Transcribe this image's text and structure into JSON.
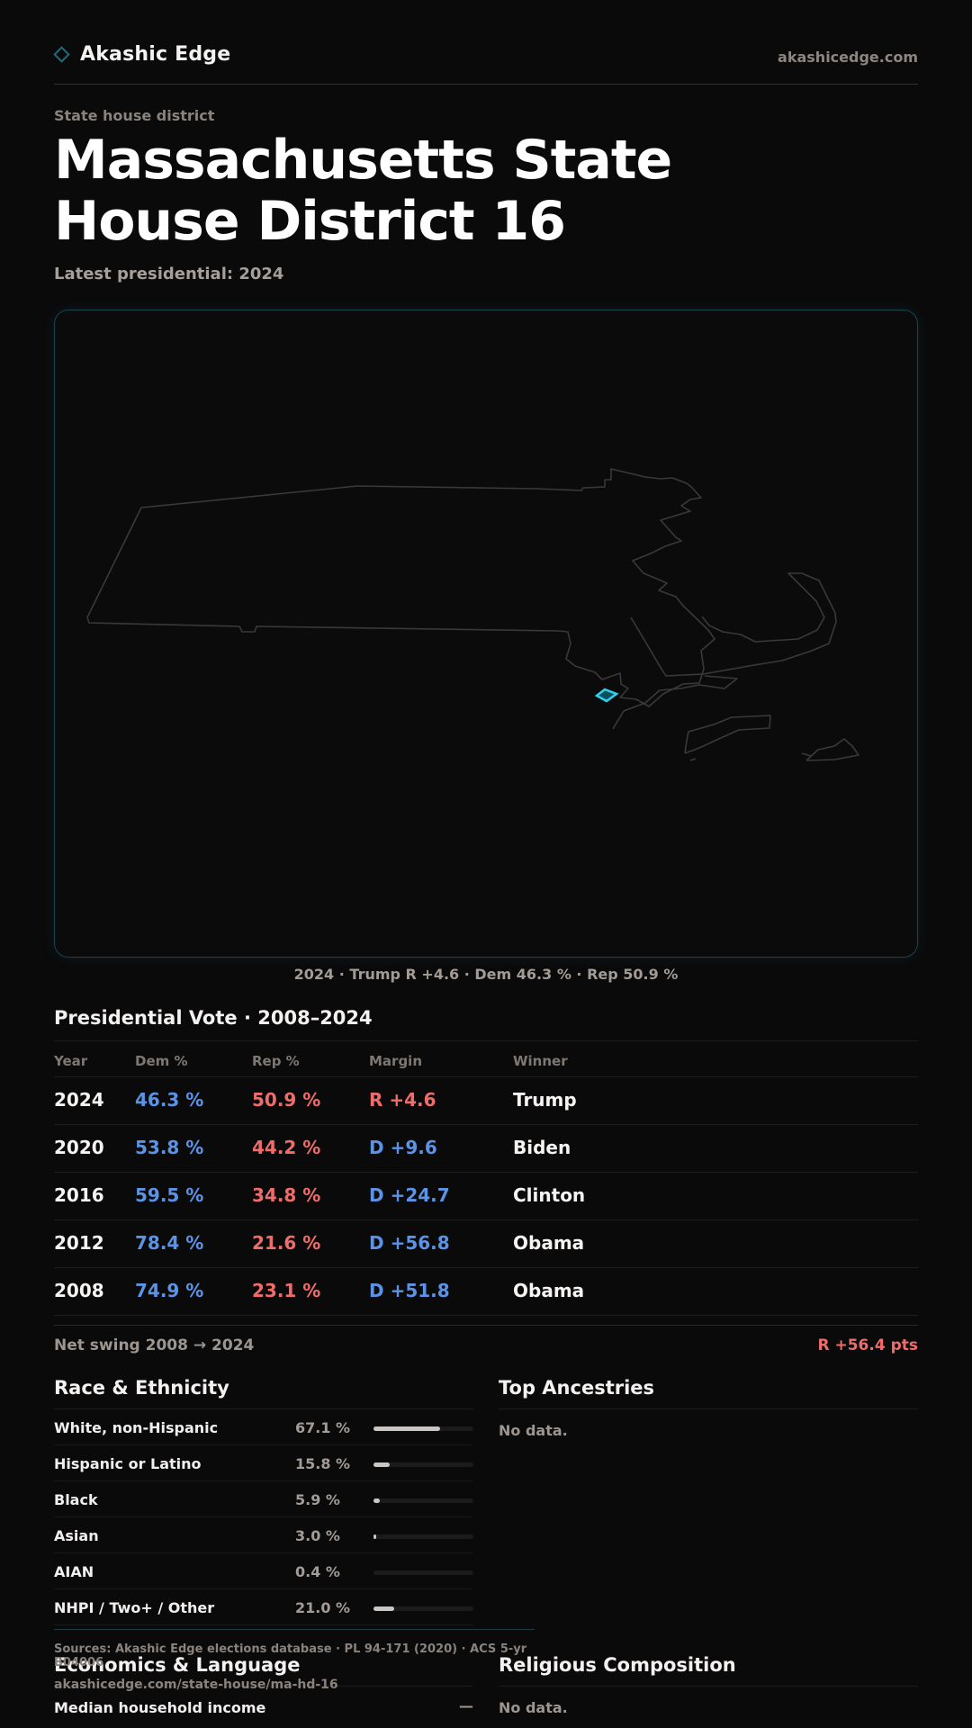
{
  "header": {
    "brand": "Akashic Edge",
    "brand_icon": "diamond-icon",
    "site": "akashicedge.com"
  },
  "page": {
    "kicker": "State house district",
    "title": "Massachusetts State House District 16",
    "subtitle": "Latest presidential: 2024"
  },
  "map": {
    "caption": "2024 · Trump R +4.6 · Dem 46.3 % · Rep 50.9 %",
    "outline_color": "#3a3839",
    "highlight_color": "#2fd2ee"
  },
  "presidential": {
    "title": "Presidential Vote · 2008–2024",
    "columns": [
      "Year",
      "Dem %",
      "Rep %",
      "Margin",
      "Winner"
    ],
    "rows": [
      {
        "year": "2024",
        "dem": "46.3 %",
        "rep": "50.9 %",
        "margin": "R +4.6",
        "margin_party": "R",
        "winner": "Trump"
      },
      {
        "year": "2020",
        "dem": "53.8 %",
        "rep": "44.2 %",
        "margin": "D +9.6",
        "margin_party": "D",
        "winner": "Biden"
      },
      {
        "year": "2016",
        "dem": "59.5 %",
        "rep": "34.8 %",
        "margin": "D +24.7",
        "margin_party": "D",
        "winner": "Clinton"
      },
      {
        "year": "2012",
        "dem": "78.4 %",
        "rep": "21.6 %",
        "margin": "D +56.8",
        "margin_party": "D",
        "winner": "Obama"
      },
      {
        "year": "2008",
        "dem": "74.9 %",
        "rep": "23.1 %",
        "margin": "D +51.8",
        "margin_party": "D",
        "winner": "Obama"
      }
    ],
    "swing_label": "Net swing 2008 → 2024",
    "swing_value": "R +56.4 pts"
  },
  "colors": {
    "dem": "#5b93e6",
    "rep": "#ee6d6b"
  },
  "race": {
    "title": "Race & Ethnicity",
    "rows": [
      {
        "label": "White, non-Hispanic",
        "pct": "67.1 %",
        "share": 67.1
      },
      {
        "label": "Hispanic or Latino",
        "pct": "15.8 %",
        "share": 15.8
      },
      {
        "label": "Black",
        "pct": "5.9 %",
        "share": 5.9
      },
      {
        "label": "Asian",
        "pct": "3.0 %",
        "share": 3.0
      },
      {
        "label": "AIAN",
        "pct": "0.4 %",
        "share": 0.4
      },
      {
        "label": "NHPI / Two+ / Other",
        "pct": "21.0 %",
        "share": 21.0
      }
    ]
  },
  "ancestries": {
    "title": "Top Ancestries",
    "empty": "No data."
  },
  "economics": {
    "title": "Economics & Language",
    "rows": [
      {
        "label": "Median household income",
        "value": "—"
      }
    ]
  },
  "religion": {
    "title": "Religious Composition",
    "empty": "No data."
  },
  "footer": {
    "sources": "Sources: Akashic Edge elections database · PL 94-171 (2020) · ACS 5-yr B04006",
    "url": "akashicedge.com/state-house/ma-hd-16"
  }
}
